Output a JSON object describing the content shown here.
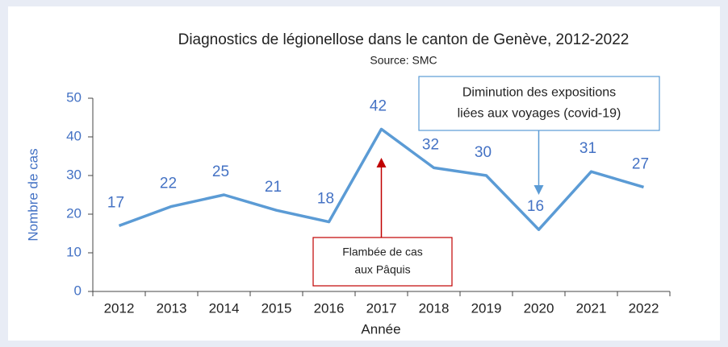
{
  "chart_data": {
    "type": "line",
    "title": "Diagnostics de légionellose dans le canton de Genève, 2012-2022",
    "subtitle": "Source: SMC",
    "x_label": "Année",
    "y_label": "Nombre de cas",
    "categories": [
      "2012",
      "2013",
      "2014",
      "2015",
      "2016",
      "2017",
      "2018",
      "2019",
      "2020",
      "2021",
      "2022"
    ],
    "series": [
      {
        "name": "Diagnostics",
        "color": "#5b9bd5",
        "values": [
          17,
          22,
          25,
          21,
          18,
          42,
          32,
          30,
          16,
          31,
          27
        ]
      }
    ],
    "ylim": [
      0,
      50
    ],
    "yticks": [
      0,
      10,
      20,
      30,
      40,
      50
    ],
    "annotations": [
      {
        "lines": [
          "Flambée de cas",
          "aux Pâquis"
        ],
        "category": "2017",
        "color": "#c00000"
      },
      {
        "lines": [
          "Diminution des expositions",
          "liées aux voyages (covid-19)"
        ],
        "category": "2020",
        "color": "#5b9bd5"
      }
    ]
  }
}
